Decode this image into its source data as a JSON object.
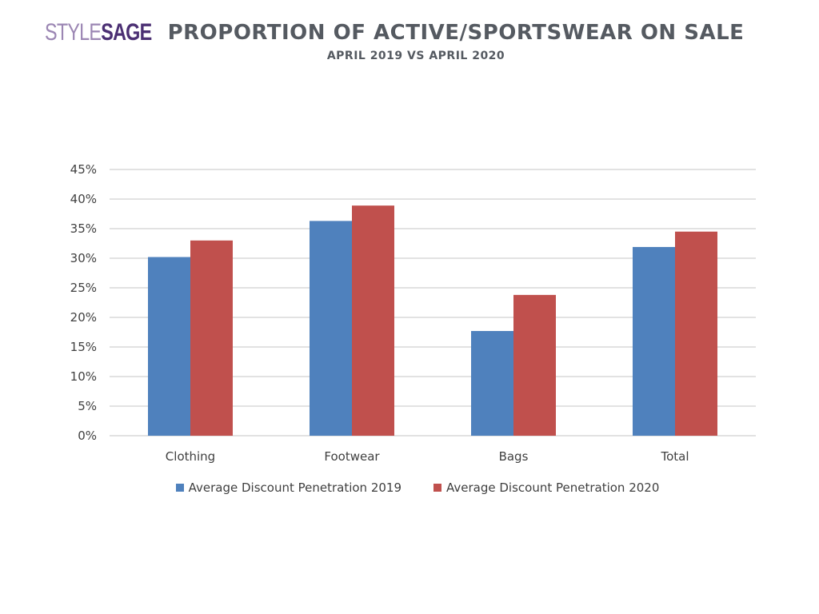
{
  "logo": {
    "part1": "STYLE",
    "part2": "SAGE"
  },
  "colors": {
    "series2019": "#4f81bd",
    "series2020": "#c0504d",
    "grid": "#d9d9d9",
    "text": "#404040"
  },
  "chart_data": {
    "type": "bar",
    "title": "PROPORTION OF ACTIVE/SPORTSWEAR ON SALE",
    "subtitle": "APRIL 2019 VS APRIL 2020",
    "categories": [
      "Clothing",
      "Footwear",
      "Bags",
      "Total"
    ],
    "series": [
      {
        "name": "Average Discount Penetration 2019",
        "values": [
          30.2,
          36.3,
          17.7,
          31.9
        ]
      },
      {
        "name": "Average Discount Penetration 2020",
        "values": [
          33.0,
          38.9,
          23.8,
          34.5
        ]
      }
    ],
    "yticks": [
      "0%",
      "5%",
      "10%",
      "15%",
      "20%",
      "25%",
      "30%",
      "35%",
      "40%",
      "45%"
    ],
    "ylim": [
      0,
      45
    ],
    "grid": true,
    "legend": "bottom"
  }
}
